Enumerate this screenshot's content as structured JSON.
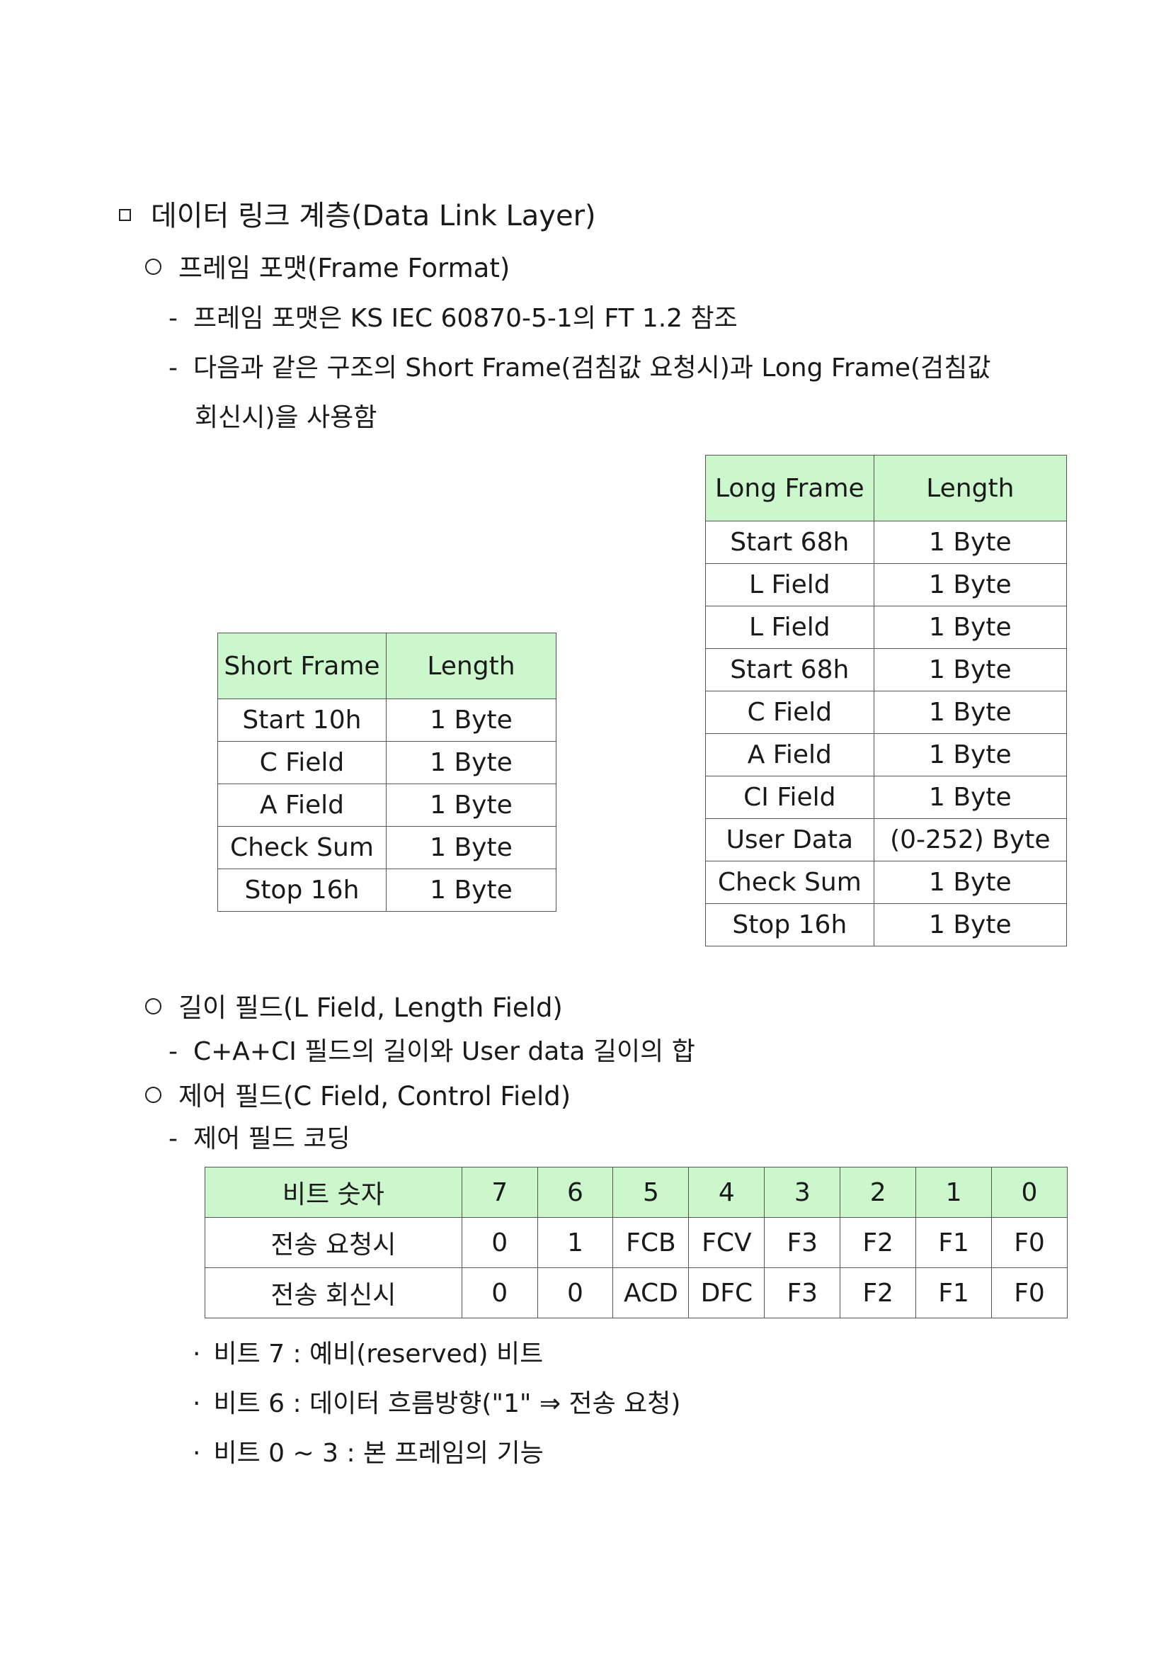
{
  "heading": {
    "marker": "square",
    "text": "데이터 링크 계층(Data Link Layer)"
  },
  "frame_format": {
    "title": "프레임 포맷(Frame Format)",
    "bullets": [
      "프레임 포맷은 KS IEC 60870-5-1의 FT 1.2 참조",
      "다음과 같은 구조의 Short Frame(검침값 요청시)과 Long Frame(검침값",
      "회신시)을 사용함"
    ]
  },
  "short_frame_table": {
    "headers": [
      "Short Frame",
      "Length"
    ],
    "rows": [
      [
        "Start 10h",
        "1 Byte"
      ],
      [
        "C Field",
        "1 Byte"
      ],
      [
        "A Field",
        "1 Byte"
      ],
      [
        "Check Sum",
        "1 Byte"
      ],
      [
        "Stop 16h",
        "1 Byte"
      ]
    ]
  },
  "long_frame_table": {
    "headers": [
      "Long Frame",
      "Length"
    ],
    "rows": [
      [
        "Start 68h",
        "1 Byte"
      ],
      [
        "L Field",
        "1 Byte"
      ],
      [
        "L Field",
        "1 Byte"
      ],
      [
        "Start 68h",
        "1 Byte"
      ],
      [
        "C Field",
        "1 Byte"
      ],
      [
        "A Field",
        "1 Byte"
      ],
      [
        "CI Field",
        "1 Byte"
      ],
      [
        "User Data",
        "(0-252) Byte"
      ],
      [
        "Check Sum",
        "1 Byte"
      ],
      [
        "Stop 16h",
        "1 Byte"
      ]
    ]
  },
  "length_field": {
    "title": "길이 필드(L Field, Length Field)",
    "bullet": "C+A+CI 필드의 길이와 User data 길이의 합"
  },
  "control_field": {
    "title": "제어 필드(C Field, Control Field)",
    "bullet": "제어 필드 코딩"
  },
  "bit_table": {
    "headers": [
      "비트 숫자",
      "7",
      "6",
      "5",
      "4",
      "3",
      "2",
      "1",
      "0"
    ],
    "rows": [
      [
        "전송 요청시",
        "0",
        "1",
        "FCB",
        "FCV",
        "F3",
        "F2",
        "F1",
        "F0"
      ],
      [
        "전송 회신시",
        "0",
        "0",
        "ACD",
        "DFC",
        "F3",
        "F2",
        "F1",
        "F0"
      ]
    ]
  },
  "notes": [
    "비트 7 : 예비(reserved) 비트",
    "비트 6 : 데이터 흐름방향(\"1\" ⇒ 전송 요청)",
    "비트 0 ~ 3 : 본 프레임의 기능"
  ],
  "colors": {
    "table_header_bg": "#ccf7cc",
    "border": "#555555"
  }
}
